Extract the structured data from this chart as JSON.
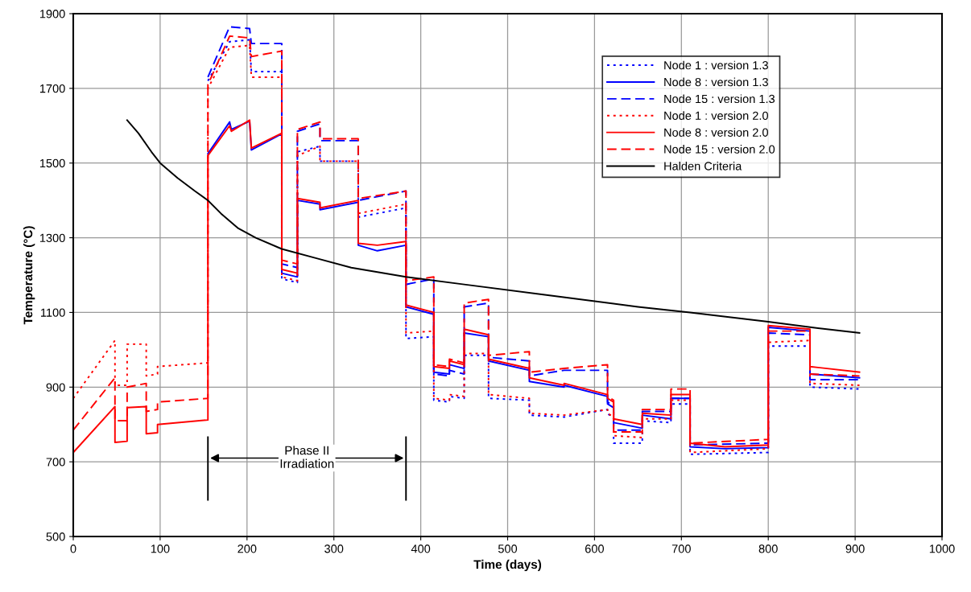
{
  "chart_data": {
    "type": "line",
    "xlabel": "Time (days)",
    "ylabel": "Temperature (°C)",
    "xlim": [
      0,
      1000
    ],
    "ylim": [
      500,
      1900
    ],
    "xticks": [
      0,
      100,
      200,
      300,
      400,
      500,
      600,
      700,
      800,
      900,
      1000
    ],
    "yticks": [
      500,
      700,
      900,
      1100,
      1300,
      1500,
      1700,
      1900
    ],
    "grid": true,
    "legend": "top right",
    "marker": "none",
    "ref_lines": [
      {
        "axis": "x",
        "value": 155
      },
      {
        "axis": "x",
        "value": 383
      }
    ],
    "annotations": [
      "Phase II\nIrradiation"
    ],
    "series": [
      {
        "name": "Node 1 : version 1.3",
        "color": "#0000ff",
        "line_style": "dotted",
        "x": [
          155,
          180,
          203,
          205,
          240,
          240,
          258,
          258,
          284,
          284,
          328,
          328,
          383,
          383,
          415,
          415,
          433,
          433,
          450,
          450,
          478,
          478,
          525,
          525,
          565,
          615,
          615,
          622,
          622,
          655,
          655,
          688,
          688,
          710,
          710,
          800,
          800,
          848,
          848,
          905
        ],
        "values": [
          1720,
          1825,
          1830,
          1745,
          1745,
          1190,
          1180,
          1530,
          1545,
          1505,
          1505,
          1355,
          1380,
          1030,
          1035,
          865,
          860,
          875,
          870,
          985,
          985,
          870,
          865,
          825,
          820,
          840,
          830,
          815,
          750,
          750,
          810,
          805,
          855,
          855,
          720,
          725,
          1010,
          1010,
          900,
          895
        ]
      },
      {
        "name": "Node 8 : version 1.3",
        "color": "#0000ff",
        "line_style": "solid",
        "x": [
          155,
          180,
          182,
          203,
          205,
          240,
          240,
          258,
          258,
          284,
          284,
          328,
          328,
          350,
          383,
          383,
          415,
          415,
          433,
          433,
          450,
          450,
          478,
          478,
          525,
          525,
          565,
          565,
          615,
          615,
          622,
          622,
          655,
          655,
          688,
          688,
          710,
          710,
          750,
          800,
          800,
          848,
          848,
          905
        ],
        "values": [
          1525,
          1610,
          1590,
          1612,
          1535,
          1578,
          1205,
          1195,
          1400,
          1390,
          1375,
          1395,
          1280,
          1265,
          1280,
          1115,
          1095,
          940,
          935,
          960,
          950,
          1045,
          1035,
          970,
          945,
          915,
          900,
          905,
          875,
          855,
          845,
          805,
          790,
          825,
          815,
          870,
          870,
          740,
          735,
          738,
          1060,
          1050,
          935,
          925
        ]
      },
      {
        "name": "Node 15 : version 1.3",
        "color": "#0000ff",
        "line_style": "dashed",
        "x": [
          155,
          180,
          203,
          205,
          240,
          240,
          258,
          258,
          284,
          284,
          328,
          328,
          383,
          383,
          415,
          415,
          433,
          433,
          450,
          450,
          478,
          478,
          525,
          525,
          565,
          615,
          615,
          622,
          622,
          655,
          655,
          688,
          688,
          710,
          710,
          800,
          800,
          848,
          848,
          905
        ],
        "values": [
          1730,
          1865,
          1860,
          1820,
          1820,
          1230,
          1220,
          1585,
          1605,
          1560,
          1560,
          1400,
          1425,
          1175,
          1190,
          935,
          930,
          945,
          935,
          1115,
          1125,
          980,
          970,
          930,
          945,
          945,
          860,
          850,
          785,
          785,
          835,
          835,
          870,
          870,
          745,
          750,
          1045,
          1040,
          920,
          920
        ]
      },
      {
        "name": "Node 1 : version 2.0",
        "color": "#ff0000",
        "line_style": "dotted",
        "x": [
          0,
          48,
          48,
          62,
          62,
          84,
          84,
          97,
          97,
          155,
          155,
          180,
          203,
          205,
          240,
          240,
          258,
          258,
          284,
          284,
          328,
          328,
          383,
          383,
          415,
          415,
          433,
          433,
          450,
          450,
          478,
          478,
          525,
          525,
          565,
          615,
          615,
          622,
          622,
          655,
          655,
          688,
          688,
          710,
          710,
          800,
          800,
          848,
          848,
          905
        ],
        "values": [
          870,
          1025,
          905,
          905,
          1015,
          1015,
          930,
          935,
          955,
          965,
          1700,
          1810,
          1815,
          1730,
          1730,
          1195,
          1185,
          1520,
          1545,
          1505,
          1505,
          1365,
          1390,
          1045,
          1050,
          870,
          865,
          880,
          875,
          990,
          990,
          880,
          870,
          830,
          825,
          840,
          830,
          820,
          770,
          765,
          815,
          815,
          865,
          865,
          725,
          735,
          1020,
          1025,
          910,
          905
        ]
      },
      {
        "name": "Node 8 : version 2.0",
        "color": "#ff0000",
        "line_style": "solid",
        "x": [
          0,
          48,
          48,
          62,
          62,
          84,
          84,
          97,
          97,
          155,
          155,
          180,
          182,
          203,
          205,
          240,
          240,
          258,
          258,
          284,
          284,
          328,
          328,
          350,
          383,
          383,
          415,
          415,
          433,
          433,
          450,
          450,
          478,
          478,
          525,
          525,
          565,
          565,
          615,
          615,
          622,
          622,
          655,
          655,
          688,
          688,
          710,
          710,
          750,
          800,
          800,
          848,
          848,
          905
        ],
        "values": [
          725,
          848,
          752,
          755,
          845,
          848,
          775,
          778,
          800,
          812,
          1520,
          1600,
          1585,
          1615,
          1540,
          1580,
          1215,
          1205,
          1405,
          1395,
          1380,
          1400,
          1285,
          1280,
          1290,
          1120,
          1100,
          955,
          950,
          970,
          960,
          1055,
          1040,
          975,
          950,
          925,
          905,
          910,
          880,
          870,
          860,
          815,
          800,
          830,
          825,
          880,
          880,
          750,
          740,
          745,
          1065,
          1055,
          955,
          940
        ]
      },
      {
        "name": "Node 15 : version 2.0",
        "color": "#ff0000",
        "line_style": "dashed",
        "x": [
          0,
          48,
          48,
          62,
          62,
          84,
          84,
          97,
          97,
          155,
          155,
          180,
          203,
          205,
          240,
          240,
          258,
          258,
          284,
          284,
          328,
          328,
          383,
          383,
          415,
          415,
          433,
          433,
          450,
          450,
          478,
          478,
          525,
          525,
          565,
          615,
          615,
          622,
          622,
          655,
          655,
          688,
          688,
          710,
          710,
          800,
          800,
          848,
          848,
          905
        ],
        "values": [
          785,
          925,
          810,
          810,
          900,
          910,
          835,
          840,
          860,
          870,
          1710,
          1840,
          1835,
          1785,
          1800,
          1240,
          1230,
          1590,
          1610,
          1565,
          1565,
          1405,
          1425,
          1185,
          1195,
          960,
          955,
          975,
          965,
          1125,
          1135,
          985,
          995,
          940,
          950,
          960,
          875,
          865,
          780,
          780,
          840,
          840,
          895,
          895,
          750,
          760,
          1050,
          1050,
          935,
          930
        ]
      },
      {
        "name": "Halden Criteria",
        "color": "#000000",
        "line_style": "solid",
        "x": [
          62,
          75,
          90,
          100,
          120,
          140,
          155,
          170,
          190,
          210,
          240,
          280,
          320,
          383,
          450,
          550,
          650,
          710,
          800,
          850,
          905
        ],
        "values": [
          1615,
          1580,
          1530,
          1500,
          1460,
          1425,
          1400,
          1365,
          1325,
          1300,
          1270,
          1245,
          1220,
          1195,
          1175,
          1145,
          1115,
          1100,
          1075,
          1060,
          1045
        ]
      }
    ]
  }
}
